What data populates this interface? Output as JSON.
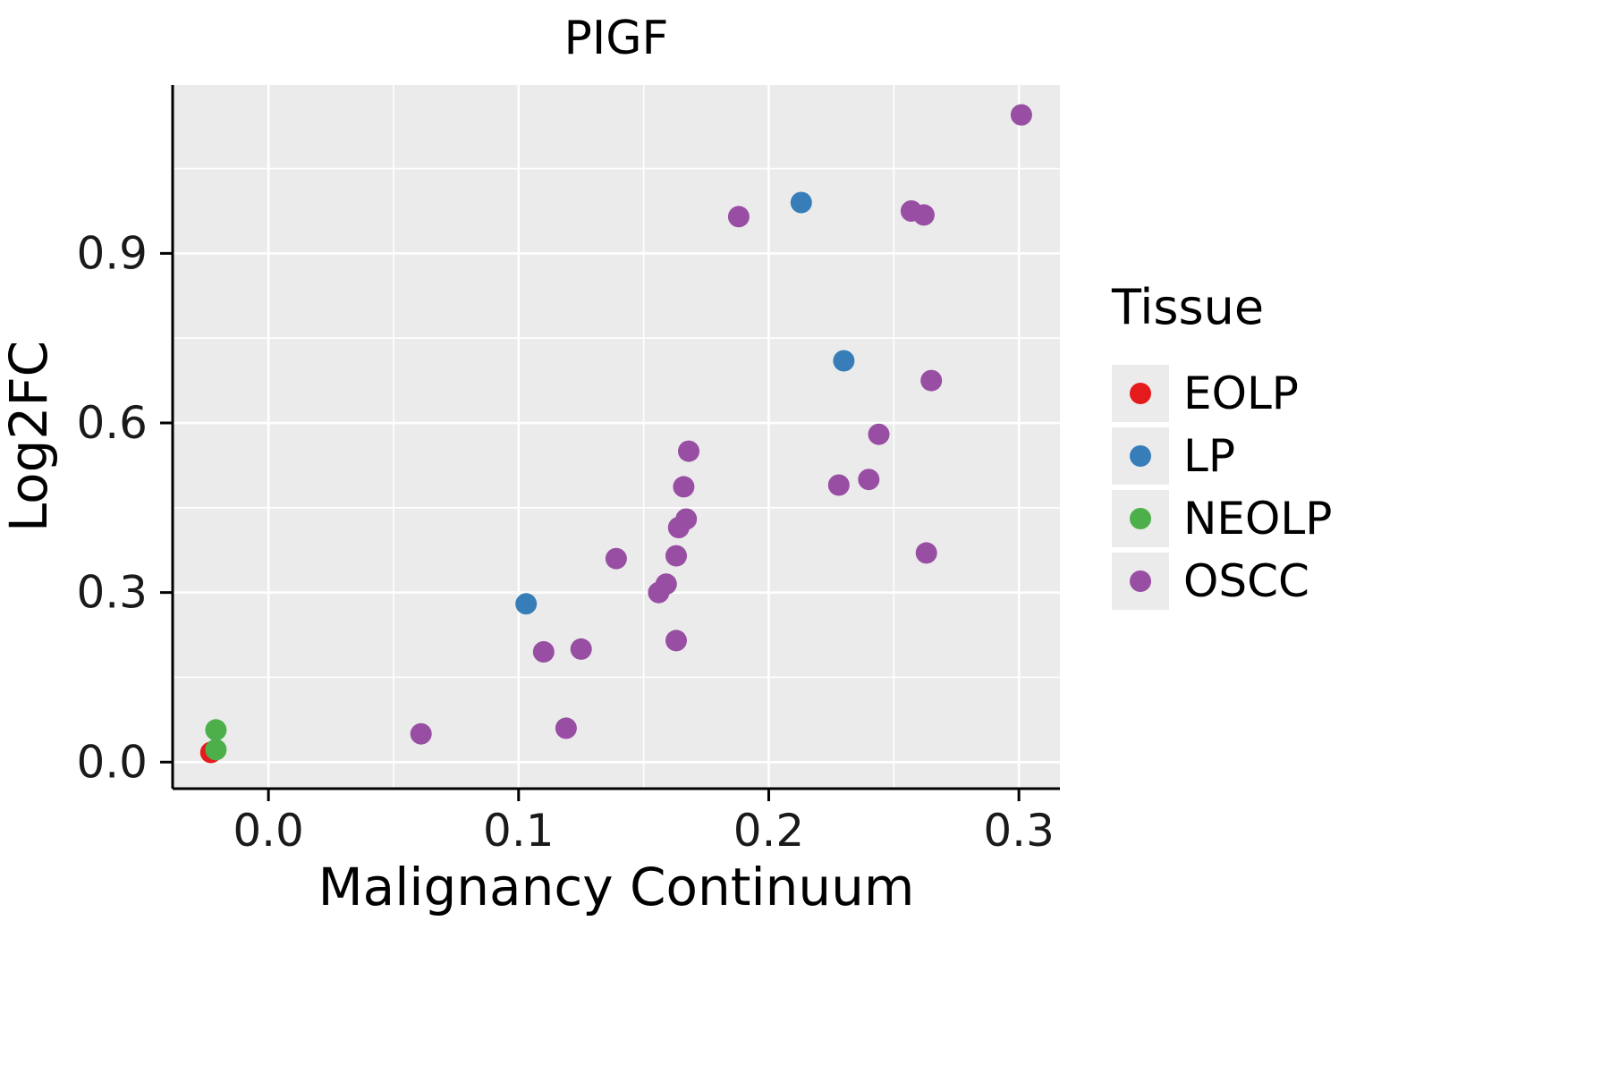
{
  "chart_data": {
    "type": "scatter",
    "title": "PIGF",
    "xlabel": "Malignancy Continuum",
    "ylabel": "Log2FC",
    "legend_title": "Tissue",
    "xlim": [
      -0.0383,
      0.3164
    ],
    "ylim": [
      -0.047,
      1.198
    ],
    "xticks": [
      0.0,
      0.1,
      0.2,
      0.3
    ],
    "xtick_labels": [
      "0.0",
      "0.1",
      "0.2",
      "0.3"
    ],
    "yticks": [
      0.0,
      0.3,
      0.6,
      0.9
    ],
    "ytick_labels": [
      "0.0",
      "0.3",
      "0.6",
      "0.9"
    ],
    "grid": true,
    "legend_position": "right",
    "colors": {
      "panel_bg": "#EBEBEB",
      "gridline": "#FFFFFF",
      "axis_line": "#000000",
      "tick_text": "#1a1a1a",
      "label_text": "#000000"
    },
    "series": [
      {
        "name": "EOLP",
        "color": "#E41A1C",
        "points": [
          [
            -0.023,
            0.017
          ]
        ]
      },
      {
        "name": "LP",
        "color": "#377EB8",
        "points": [
          [
            0.103,
            0.28
          ],
          [
            0.213,
            0.99
          ],
          [
            0.23,
            0.71
          ]
        ]
      },
      {
        "name": "NEOLP",
        "color": "#4DAF4A",
        "points": [
          [
            -0.021,
            0.057
          ],
          [
            -0.021,
            0.022
          ]
        ]
      },
      {
        "name": "OSCC",
        "color": "#984EA3",
        "points": [
          [
            0.061,
            0.05
          ],
          [
            0.11,
            0.195
          ],
          [
            0.119,
            0.06
          ],
          [
            0.125,
            0.2
          ],
          [
            0.139,
            0.36
          ],
          [
            0.156,
            0.3
          ],
          [
            0.159,
            0.315
          ],
          [
            0.163,
            0.215
          ],
          [
            0.163,
            0.365
          ],
          [
            0.164,
            0.415
          ],
          [
            0.167,
            0.43
          ],
          [
            0.166,
            0.487
          ],
          [
            0.168,
            0.55
          ],
          [
            0.188,
            0.965
          ],
          [
            0.228,
            0.49
          ],
          [
            0.24,
            0.5
          ],
          [
            0.244,
            0.58
          ],
          [
            0.257,
            0.975
          ],
          [
            0.262,
            0.968
          ],
          [
            0.265,
            0.675
          ],
          [
            0.263,
            0.37
          ],
          [
            0.301,
            1.145
          ]
        ]
      }
    ]
  }
}
